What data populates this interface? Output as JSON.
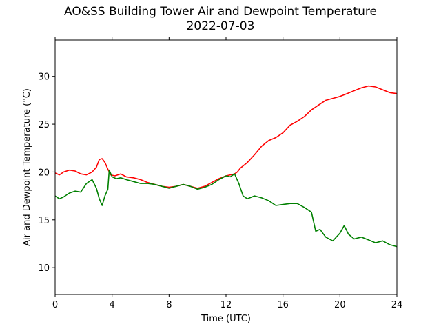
{
  "chart_data": {
    "type": "line",
    "title": "AO&SS Building Tower Air and Dewpoint Temperature",
    "subtitle": "2022-07-03",
    "xlabel": "Time (UTC)",
    "ylabel": "Air and Dewpoint Temperature (°C)",
    "xlim": [
      0,
      24
    ],
    "ylim": [
      7.2,
      33.8
    ],
    "xticks": [
      0,
      4,
      8,
      12,
      16,
      20,
      24
    ],
    "yticks": [
      10,
      15,
      20,
      25,
      30
    ],
    "grid": false,
    "series": [
      {
        "color": "#ff0000",
        "x": [
          0,
          0.3,
          0.6,
          1.0,
          1.4,
          1.8,
          2.2,
          2.6,
          2.9,
          3.1,
          3.3,
          3.5,
          3.7,
          3.9,
          4.2,
          4.6,
          5.0,
          5.5,
          6.0,
          6.5,
          7.0,
          7.5,
          8.0,
          8.5,
          9.0,
          9.5,
          10.0,
          10.5,
          11.0,
          11.5,
          12.0,
          12.3,
          12.6,
          12.8,
          13.0,
          13.5,
          14.0,
          14.5,
          15.0,
          15.5,
          16.0,
          16.5,
          17.0,
          17.5,
          18.0,
          18.5,
          19.0,
          19.5,
          20.0,
          20.5,
          21.0,
          21.5,
          22.0,
          22.5,
          23.0,
          23.5,
          24.0
        ],
        "values": [
          19.9,
          19.7,
          20.0,
          20.2,
          20.1,
          19.8,
          19.7,
          20.0,
          20.5,
          21.3,
          21.4,
          21.0,
          20.3,
          19.7,
          19.6,
          19.8,
          19.5,
          19.4,
          19.2,
          18.9,
          18.7,
          18.5,
          18.4,
          18.5,
          18.7,
          18.5,
          18.3,
          18.5,
          18.9,
          19.3,
          19.6,
          19.7,
          19.8,
          20.0,
          20.4,
          21.0,
          21.8,
          22.7,
          23.3,
          23.6,
          24.1,
          24.9,
          25.3,
          25.8,
          26.5,
          27.0,
          27.5,
          27.7,
          27.9,
          28.2,
          28.5,
          28.8,
          29.0,
          28.9,
          28.6,
          28.3,
          28.2
        ]
      },
      {
        "color": "#008000",
        "x": [
          0,
          0.3,
          0.6,
          1.0,
          1.4,
          1.8,
          2.2,
          2.6,
          2.9,
          3.1,
          3.3,
          3.5,
          3.7,
          3.8,
          4.0,
          4.3,
          4.6,
          5.0,
          5.5,
          6.0,
          6.5,
          7.0,
          7.5,
          8.0,
          8.5,
          9.0,
          9.5,
          10.0,
          10.5,
          11.0,
          11.5,
          12.0,
          12.3,
          12.6,
          12.9,
          13.2,
          13.5,
          14.0,
          14.5,
          15.0,
          15.5,
          16.0,
          16.5,
          17.0,
          17.5,
          18.0,
          18.3,
          18.6,
          19.0,
          19.5,
          20.0,
          20.3,
          20.6,
          21.0,
          21.5,
          22.0,
          22.5,
          23.0,
          23.5,
          24.0
        ],
        "values": [
          17.5,
          17.2,
          17.4,
          17.8,
          18.0,
          17.9,
          18.8,
          19.2,
          18.3,
          17.2,
          16.5,
          17.5,
          18.2,
          20.2,
          19.5,
          19.3,
          19.4,
          19.2,
          19.0,
          18.8,
          18.8,
          18.7,
          18.5,
          18.3,
          18.5,
          18.7,
          18.5,
          18.2,
          18.4,
          18.7,
          19.2,
          19.6,
          19.5,
          19.8,
          18.8,
          17.5,
          17.2,
          17.5,
          17.3,
          17.0,
          16.5,
          16.6,
          16.7,
          16.7,
          16.3,
          15.8,
          13.8,
          14.0,
          13.2,
          12.8,
          13.6,
          14.4,
          13.5,
          13.0,
          13.2,
          12.9,
          12.6,
          12.8,
          12.4,
          12.2
        ]
      }
    ]
  }
}
